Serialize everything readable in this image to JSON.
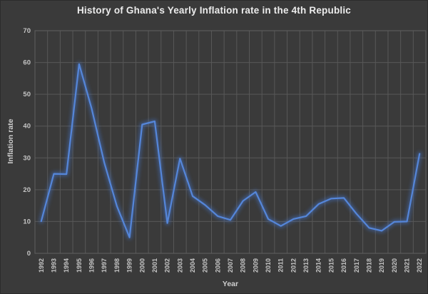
{
  "chart_data": {
    "type": "line",
    "title": "History of Ghana's Yearly Inflation rate in the 4th Republic",
    "xlabel": "Year",
    "ylabel": "Inflation rate",
    "ylim": [
      0,
      70
    ],
    "yticks": [
      0,
      10,
      20,
      30,
      40,
      50,
      60,
      70
    ],
    "grid": "both",
    "legend": "none",
    "categories": [
      1992,
      1993,
      1994,
      1995,
      1996,
      1997,
      1998,
      1999,
      2000,
      2001,
      2002,
      2003,
      2004,
      2005,
      2006,
      2007,
      2008,
      2009,
      2010,
      2011,
      2012,
      2013,
      2014,
      2015,
      2016,
      2017,
      2018,
      2019,
      2020,
      2021,
      2022
    ],
    "series": [
      {
        "name": "Inflation rate",
        "values": [
          10.1,
          25,
          24.9,
          59.5,
          45.5,
          28.5,
          14.8,
          5,
          40.5,
          41.5,
          9.5,
          29.8,
          18,
          15.2,
          11.7,
          10.5,
          16.5,
          19.3,
          10.8,
          8.6,
          10.8,
          11.7,
          15.5,
          17.2,
          17.4,
          12.4,
          8,
          7.1,
          9.9,
          10,
          31.3
        ]
      }
    ],
    "colors": {
      "background": "#3a3a3a",
      "gridline": "#585858",
      "plot_border": "#606060",
      "line": "#4472c4",
      "line_highlight": "#5586d9",
      "tick_text": "#c4c4c4",
      "title_text": "#ececec",
      "axis_title_text": "#cfcfcf"
    }
  }
}
